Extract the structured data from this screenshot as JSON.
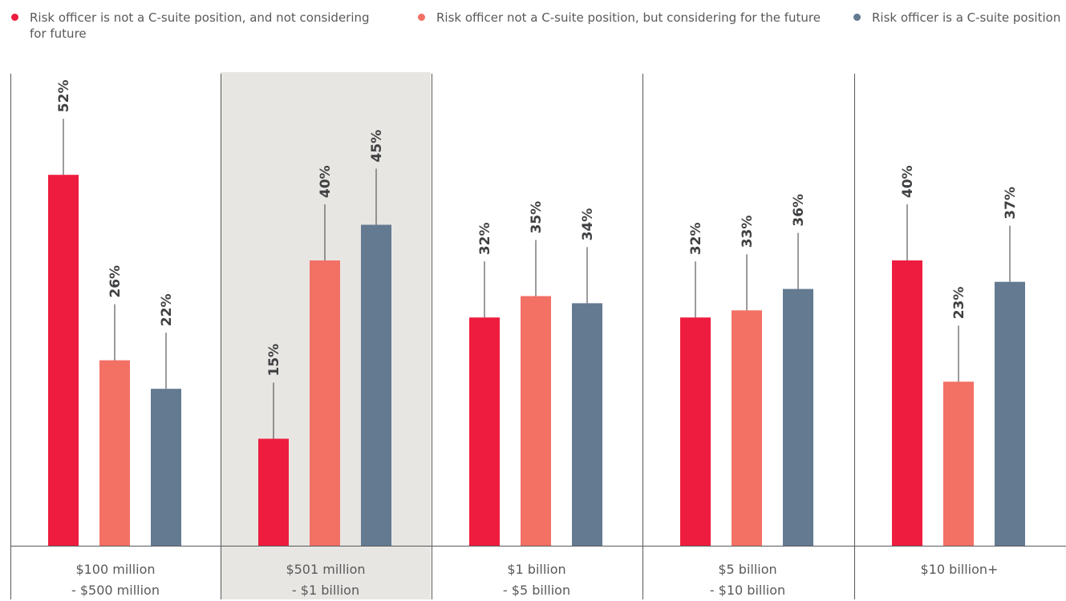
{
  "legend": [
    {
      "label": "Risk officer is not a C-suite position, and not considering for future",
      "color": "#ee1c3e"
    },
    {
      "label": "Risk officer not a C-suite position, but considering for the future",
      "color": "#f37065"
    },
    {
      "label": "Risk officer is a C-suite position",
      "color": "#637a91"
    }
  ],
  "chart_data": {
    "type": "bar",
    "categories": [
      {
        "line1": "$100 million",
        "line2": "- $500 million"
      },
      {
        "line1": "$501 million",
        "line2": "- $1 billion"
      },
      {
        "line1": "$1 billion",
        "line2": "- $5 billion"
      },
      {
        "line1": "$5 billion",
        "line2": "- $10 billion"
      },
      {
        "line1": "$10 billion+",
        "line2": ""
      }
    ],
    "series": [
      {
        "name": "Risk officer is not a C-suite position, and not considering for future",
        "color": "#ee1c3e",
        "values": [
          52,
          15,
          32,
          32,
          40
        ]
      },
      {
        "name": "Risk officer not a C-suite position, but considering for the future",
        "color": "#f37065",
        "values": [
          26,
          40,
          35,
          33,
          23
        ]
      },
      {
        "name": "Risk officer is a C-suite position",
        "color": "#637a91",
        "values": [
          22,
          45,
          34,
          36,
          37
        ]
      }
    ],
    "data_labels": [
      [
        "52%",
        "15%",
        "32%",
        "32%",
        "40%"
      ],
      [
        "26%",
        "40%",
        "35%",
        "33%",
        "23%"
      ],
      [
        "22%",
        "45%",
        "34%",
        "36%",
        "37%"
      ]
    ],
    "highlighted_category": 1,
    "highlight_color": "#e8e6e3",
    "ylim": [
      0,
      60
    ],
    "grid": false,
    "legend_position": "top"
  }
}
